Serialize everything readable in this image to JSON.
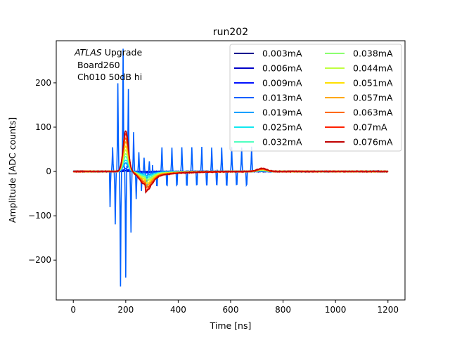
{
  "chart_data": {
    "type": "line",
    "title": "run202",
    "xlabel": "Time [ns]",
    "ylabel": "Amplitude [ADC counts]",
    "xlim": [
      -65,
      1265
    ],
    "ylim": [
      -290,
      295
    ],
    "xticks": [
      0,
      200,
      400,
      600,
      800,
      1000,
      1200
    ],
    "yticks": [
      -200,
      -100,
      0,
      100,
      200
    ],
    "annotation": {
      "line1_italic": "ATLAS",
      "line1_rest": " Upgrade",
      "line2": "Board260",
      "line3": "Ch010 50dB hi"
    },
    "legend_position": "top-right",
    "series": [
      {
        "name": "0.003mA",
        "color": "#00008f",
        "amp": 0.012
      },
      {
        "name": "0.006mA",
        "color": "#0000c8",
        "amp": 0.025
      },
      {
        "name": "0.009mA",
        "color": "#0010ff",
        "amp": 0.06
      },
      {
        "name": "0.013mA",
        "color": "#0060ff",
        "amp": 0.12
      },
      {
        "name": "0.019mA",
        "color": "#00a0ff",
        "amp": 0.2
      },
      {
        "name": "0.025mA",
        "color": "#10e8f0",
        "amp": 0.28
      },
      {
        "name": "0.032mA",
        "color": "#50ffc0",
        "amp": 0.36
      },
      {
        "name": "0.038mA",
        "color": "#8cff70",
        "amp": 0.44
      },
      {
        "name": "0.044mA",
        "color": "#c0ff40",
        "amp": 0.52
      },
      {
        "name": "0.051mA",
        "color": "#ffe000",
        "amp": 0.62
      },
      {
        "name": "0.057mA",
        "color": "#ffa800",
        "amp": 0.72
      },
      {
        "name": "0.063mA",
        "color": "#ff6a00",
        "amp": 0.82
      },
      {
        "name": "0.07mA",
        "color": "#ff2000",
        "amp": 0.92
      },
      {
        "name": "0.076mA",
        "color": "#c00000",
        "amp": 1.0
      }
    ],
    "noisy_series_index": 3,
    "pulse_peak_time": 200,
    "pulse_peak_value": 92,
    "undershoot_time": 275,
    "undershoot_value": -30,
    "late_bump_time": 720,
    "late_bump_value": 7
  }
}
